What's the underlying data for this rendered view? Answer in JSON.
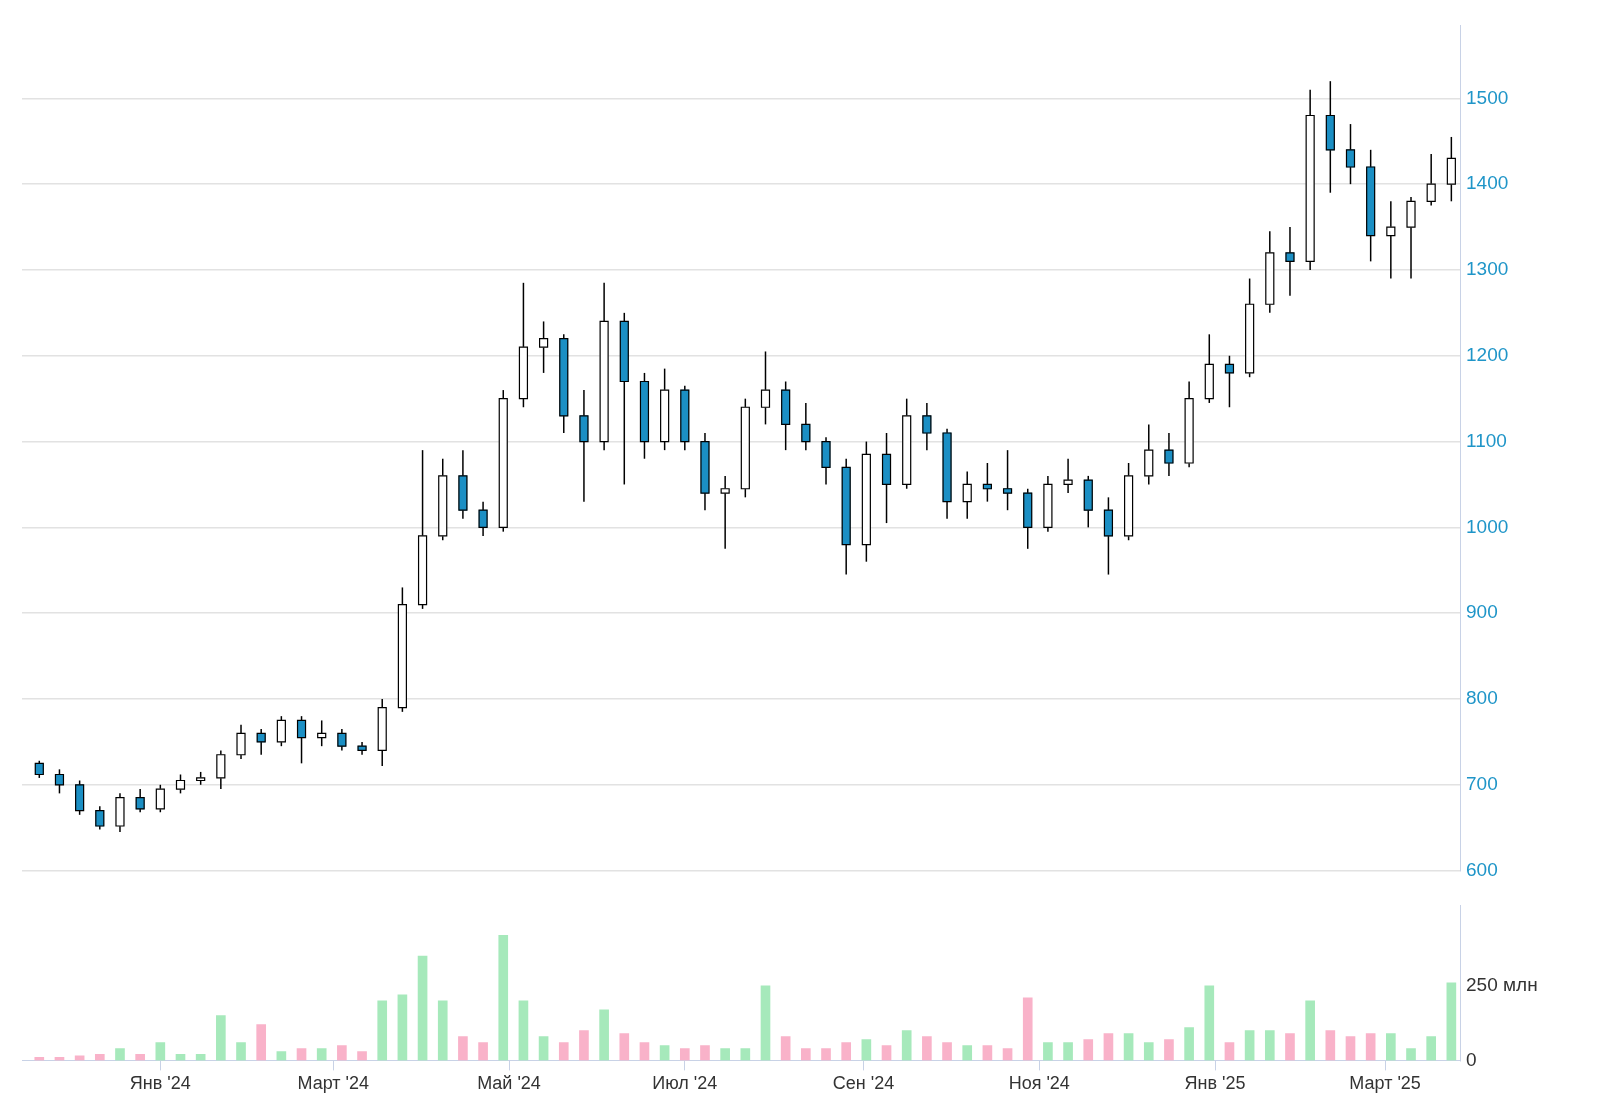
{
  "chart_data": [
    {
      "type": "candlestick",
      "x": [
        "2023-11-20",
        "2023-11-27",
        "2023-12-04",
        "2023-12-11",
        "2023-12-18",
        "2023-12-25",
        "2024-01-01",
        "2024-01-08",
        "2024-01-15",
        "2024-01-22",
        "2024-01-29",
        "2024-02-05",
        "2024-02-12",
        "2024-02-19",
        "2024-02-26",
        "2024-03-04",
        "2024-03-11",
        "2024-03-18",
        "2024-03-25",
        "2024-04-01",
        "2024-04-08",
        "2024-04-15",
        "2024-04-22",
        "2024-04-29",
        "2024-05-06",
        "2024-05-13",
        "2024-05-20",
        "2024-05-27",
        "2024-06-03",
        "2024-06-10",
        "2024-06-17",
        "2024-06-24",
        "2024-07-01",
        "2024-07-08",
        "2024-07-15",
        "2024-07-22",
        "2024-07-29",
        "2024-08-05",
        "2024-08-12",
        "2024-08-19",
        "2024-08-26",
        "2024-09-02",
        "2024-09-09",
        "2024-09-16",
        "2024-09-23",
        "2024-09-30",
        "2024-10-07",
        "2024-10-14",
        "2024-10-21",
        "2024-10-28",
        "2024-11-04",
        "2024-11-11",
        "2024-11-18",
        "2024-11-25",
        "2024-12-02",
        "2024-12-09",
        "2024-12-16",
        "2024-12-23",
        "2024-12-30",
        "2025-01-06",
        "2025-01-13",
        "2025-01-20",
        "2025-01-27",
        "2025-02-03",
        "2025-02-10",
        "2025-02-17",
        "2025-02-24",
        "2025-03-03",
        "2025-03-10",
        "2025-03-17",
        "2025-03-24"
      ],
      "ohlc": [
        [
          725,
          728,
          708,
          712
        ],
        [
          712,
          718,
          690,
          700
        ],
        [
          700,
          705,
          665,
          670
        ],
        [
          670,
          675,
          648,
          652
        ],
        [
          652,
          690,
          645,
          685
        ],
        [
          685,
          695,
          668,
          672
        ],
        [
          672,
          700,
          668,
          695
        ],
        [
          695,
          712,
          690,
          705
        ],
        [
          705,
          715,
          700,
          708
        ],
        [
          708,
          740,
          695,
          735
        ],
        [
          735,
          770,
          730,
          760
        ],
        [
          760,
          765,
          735,
          750
        ],
        [
          750,
          780,
          745,
          775
        ],
        [
          775,
          780,
          725,
          755
        ],
        [
          755,
          775,
          745,
          760
        ],
        [
          760,
          765,
          740,
          745
        ],
        [
          745,
          750,
          735,
          740
        ],
        [
          740,
          800,
          722,
          790
        ],
        [
          790,
          930,
          785,
          910
        ],
        [
          910,
          1090,
          905,
          990
        ],
        [
          990,
          1080,
          985,
          1060
        ],
        [
          1060,
          1090,
          1010,
          1020
        ],
        [
          1020,
          1030,
          990,
          1000
        ],
        [
          1000,
          1160,
          995,
          1150
        ],
        [
          1150,
          1285,
          1140,
          1210
        ],
        [
          1210,
          1240,
          1180,
          1220
        ],
        [
          1220,
          1225,
          1110,
          1130
        ],
        [
          1130,
          1160,
          1030,
          1100
        ],
        [
          1100,
          1285,
          1090,
          1240
        ],
        [
          1240,
          1250,
          1050,
          1170
        ],
        [
          1170,
          1180,
          1080,
          1100
        ],
        [
          1100,
          1185,
          1090,
          1160
        ],
        [
          1160,
          1165,
          1090,
          1100
        ],
        [
          1100,
          1110,
          1020,
          1040
        ],
        [
          1040,
          1060,
          975,
          1045
        ],
        [
          1045,
          1150,
          1035,
          1140
        ],
        [
          1140,
          1205,
          1120,
          1160
        ],
        [
          1160,
          1170,
          1090,
          1120
        ],
        [
          1120,
          1145,
          1090,
          1100
        ],
        [
          1100,
          1105,
          1050,
          1070
        ],
        [
          1070,
          1080,
          945,
          980
        ],
        [
          980,
          1100,
          960,
          1085
        ],
        [
          1085,
          1110,
          1005,
          1050
        ],
        [
          1050,
          1150,
          1045,
          1130
        ],
        [
          1130,
          1145,
          1090,
          1110
        ],
        [
          1110,
          1115,
          1010,
          1030
        ],
        [
          1030,
          1065,
          1010,
          1050
        ],
        [
          1050,
          1075,
          1030,
          1045
        ],
        [
          1045,
          1090,
          1020,
          1040
        ],
        [
          1040,
          1045,
          975,
          1000
        ],
        [
          1000,
          1060,
          995,
          1050
        ],
        [
          1050,
          1080,
          1040,
          1055
        ],
        [
          1055,
          1060,
          1000,
          1020
        ],
        [
          1020,
          1035,
          945,
          990
        ],
        [
          990,
          1075,
          985,
          1060
        ],
        [
          1060,
          1120,
          1050,
          1090
        ],
        [
          1090,
          1110,
          1060,
          1075
        ],
        [
          1075,
          1170,
          1070,
          1150
        ],
        [
          1150,
          1225,
          1145,
          1190
        ],
        [
          1190,
          1200,
          1140,
          1180
        ],
        [
          1180,
          1290,
          1175,
          1260
        ],
        [
          1260,
          1345,
          1250,
          1320
        ],
        [
          1320,
          1350,
          1270,
          1310
        ],
        [
          1310,
          1510,
          1300,
          1480
        ],
        [
          1480,
          1520,
          1390,
          1440
        ],
        [
          1440,
          1470,
          1400,
          1420
        ],
        [
          1420,
          1440,
          1310,
          1340
        ],
        [
          1340,
          1380,
          1290,
          1350
        ],
        [
          1350,
          1385,
          1290,
          1380
        ],
        [
          1380,
          1435,
          1375,
          1400
        ],
        [
          1400,
          1455,
          1380,
          1430
        ]
      ],
      "colors": [
        "#1b8fc4",
        "#1b8fc4",
        "#1b8fc4",
        "#1b8fc4",
        "#ffffff",
        "#1b8fc4",
        "#ffffff",
        "#ffffff",
        "#ffffff",
        "#ffffff",
        "#ffffff",
        "#1b8fc4",
        "#ffffff",
        "#1b8fc4",
        "#ffffff",
        "#1b8fc4",
        "#1b8fc4",
        "#ffffff",
        "#ffffff",
        "#ffffff",
        "#ffffff",
        "#1b8fc4",
        "#1b8fc4",
        "#ffffff",
        "#ffffff",
        "#ffffff",
        "#1b8fc4",
        "#1b8fc4",
        "#ffffff",
        "#1b8fc4",
        "#1b8fc4",
        "#ffffff",
        "#1b8fc4",
        "#1b8fc4",
        "#ffffff",
        "#ffffff",
        "#ffffff",
        "#1b8fc4",
        "#1b8fc4",
        "#1b8fc4",
        "#1b8fc4",
        "#ffffff",
        "#1b8fc4",
        "#ffffff",
        "#1b8fc4",
        "#1b8fc4",
        "#ffffff",
        "#1b8fc4",
        "#1b8fc4",
        "#1b8fc4",
        "#ffffff",
        "#ffffff",
        "#1b8fc4",
        "#1b8fc4",
        "#ffffff",
        "#ffffff",
        "#1b8fc4",
        "#ffffff",
        "#ffffff",
        "#1b8fc4",
        "#ffffff",
        "#ffffff",
        "#1b8fc4",
        "#ffffff",
        "#1b8fc4",
        "#1b8fc4",
        "#1b8fc4",
        "#ffffff",
        "#ffffff",
        "#ffffff",
        "#ffffff"
      ],
      "xlim": [
        "2023-11-14",
        "2025-03-27"
      ],
      "ylim": [
        600,
        1585
      ],
      "yticks": [
        600,
        700,
        800,
        900,
        1000,
        1100,
        1200,
        1300,
        1400,
        1500
      ],
      "grid": "y",
      "tick_labels": "y"
    },
    {
      "type": "bar",
      "x": [
        "2023-11-20",
        "2023-11-27",
        "2023-12-04",
        "2023-12-11",
        "2023-12-18",
        "2023-12-25",
        "2024-01-01",
        "2024-01-08",
        "2024-01-15",
        "2024-01-22",
        "2024-01-29",
        "2024-02-05",
        "2024-02-12",
        "2024-02-19",
        "2024-02-26",
        "2024-03-04",
        "2024-03-11",
        "2024-03-18",
        "2024-03-25",
        "2024-04-01",
        "2024-04-08",
        "2024-04-15",
        "2024-04-22",
        "2024-04-29",
        "2024-05-06",
        "2024-05-13",
        "2024-05-20",
        "2024-05-27",
        "2024-06-03",
        "2024-06-10",
        "2024-06-17",
        "2024-06-24",
        "2024-07-01",
        "2024-07-08",
        "2024-07-15",
        "2024-07-22",
        "2024-07-29",
        "2024-08-05",
        "2024-08-12",
        "2024-08-19",
        "2024-08-26",
        "2024-09-02",
        "2024-09-09",
        "2024-09-16",
        "2024-09-23",
        "2024-09-30",
        "2024-10-07",
        "2024-10-14",
        "2024-10-21",
        "2024-10-28",
        "2024-11-04",
        "2024-11-11",
        "2024-11-18",
        "2024-11-25",
        "2024-12-02",
        "2024-12-09",
        "2024-12-16",
        "2024-12-23",
        "2024-12-30",
        "2025-01-06",
        "2025-01-13",
        "2025-01-20",
        "2025-01-27",
        "2025-02-03",
        "2025-02-10",
        "2025-02-17",
        "2025-02-24",
        "2025-03-03",
        "2025-03-10",
        "2025-03-17",
        "2025-03-24"
      ],
      "values": [
        10,
        10,
        15,
        20,
        40,
        20,
        60,
        20,
        20,
        150,
        60,
        120,
        30,
        40,
        40,
        50,
        30,
        200,
        220,
        350,
        200,
        80,
        60,
        420,
        200,
        80,
        60,
        100,
        170,
        90,
        60,
        50,
        40,
        50,
        40,
        40,
        250,
        80,
        40,
        40,
        60,
        70,
        50,
        100,
        80,
        60,
        50,
        50,
        40,
        210,
        60,
        60,
        70,
        90,
        90,
        60,
        70,
        110,
        250,
        60,
        100,
        100,
        90,
        200,
        100,
        80,
        90,
        90,
        40,
        80,
        260
      ],
      "colors": [
        "#f9b2c9",
        "#f9b2c9",
        "#f9b2c9",
        "#f9b2c9",
        "#a6e9bb",
        "#f9b2c9",
        "#a6e9bb",
        "#a6e9bb",
        "#a6e9bb",
        "#a6e9bb",
        "#a6e9bb",
        "#f9b2c9",
        "#a6e9bb",
        "#f9b2c9",
        "#a6e9bb",
        "#f9b2c9",
        "#f9b2c9",
        "#a6e9bb",
        "#a6e9bb",
        "#a6e9bb",
        "#a6e9bb",
        "#f9b2c9",
        "#f9b2c9",
        "#a6e9bb",
        "#a6e9bb",
        "#a6e9bb",
        "#f9b2c9",
        "#f9b2c9",
        "#a6e9bb",
        "#f9b2c9",
        "#f9b2c9",
        "#a6e9bb",
        "#f9b2c9",
        "#f9b2c9",
        "#a6e9bb",
        "#a6e9bb",
        "#a6e9bb",
        "#f9b2c9",
        "#f9b2c9",
        "#f9b2c9",
        "#f9b2c9",
        "#a6e9bb",
        "#f9b2c9",
        "#a6e9bb",
        "#f9b2c9",
        "#f9b2c9",
        "#a6e9bb",
        "#f9b2c9",
        "#f9b2c9",
        "#f9b2c9",
        "#a6e9bb",
        "#a6e9bb",
        "#f9b2c9",
        "#f9b2c9",
        "#a6e9bb",
        "#a6e9bb",
        "#f9b2c9",
        "#a6e9bb",
        "#a6e9bb",
        "#f9b2c9",
        "#a6e9bb",
        "#a6e9bb",
        "#f9b2c9",
        "#a6e9bb",
        "#f9b2c9",
        "#f9b2c9",
        "#f9b2c9",
        "#a6e9bb",
        "#a6e9bb",
        "#a6e9bb",
        "#a6e9bb"
      ],
      "xlim": [
        "2023-11-14",
        "2025-03-27"
      ],
      "xticks": [
        {
          "value": "2024-01-01",
          "label": "Янв '24"
        },
        {
          "value": "2024-03-01",
          "label": "Март '24"
        },
        {
          "value": "2024-05-01",
          "label": "Май '24"
        },
        {
          "value": "2024-07-01",
          "label": "Июл '24"
        },
        {
          "value": "2024-09-01",
          "label": "Сен '24"
        },
        {
          "value": "2024-11-01",
          "label": "Ноя '24"
        },
        {
          "value": "2025-01-01",
          "label": "Янв '25"
        },
        {
          "value": "2025-03-01",
          "label": "Март '25"
        }
      ],
      "ylim": [
        0,
        520
      ],
      "yticks": [
        {
          "value": 0,
          "label": "0"
        },
        {
          "value": 250,
          "label": "250 млн"
        }
      ]
    }
  ]
}
